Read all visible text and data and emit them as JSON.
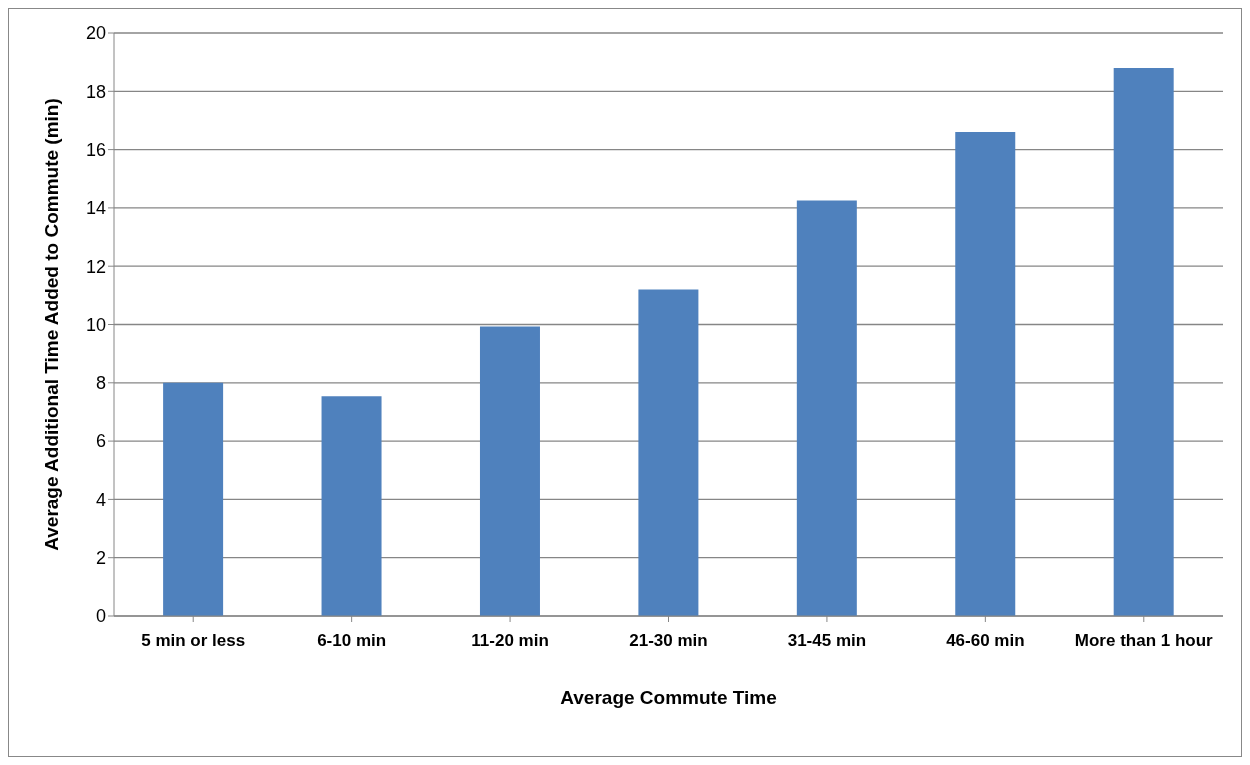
{
  "chart_data": {
    "type": "bar",
    "xlabel": "Average Commute Time",
    "ylabel": "Average Additional Time Added to Commute (min)",
    "categories": [
      "5 min or less",
      "6-10 min",
      "11-20 min",
      "21-30 min",
      "31-45 min",
      "46-60 min",
      "More than 1 hour"
    ],
    "values": [
      8.0,
      7.54,
      9.93,
      11.2,
      14.25,
      16.6,
      18.8
    ],
    "color": "#4f81bd",
    "ylim": [
      0,
      20
    ],
    "yticks": [
      0,
      2,
      4,
      6,
      8,
      10,
      12,
      14,
      16,
      18,
      20
    ],
    "grid": "y",
    "legend": false
  }
}
